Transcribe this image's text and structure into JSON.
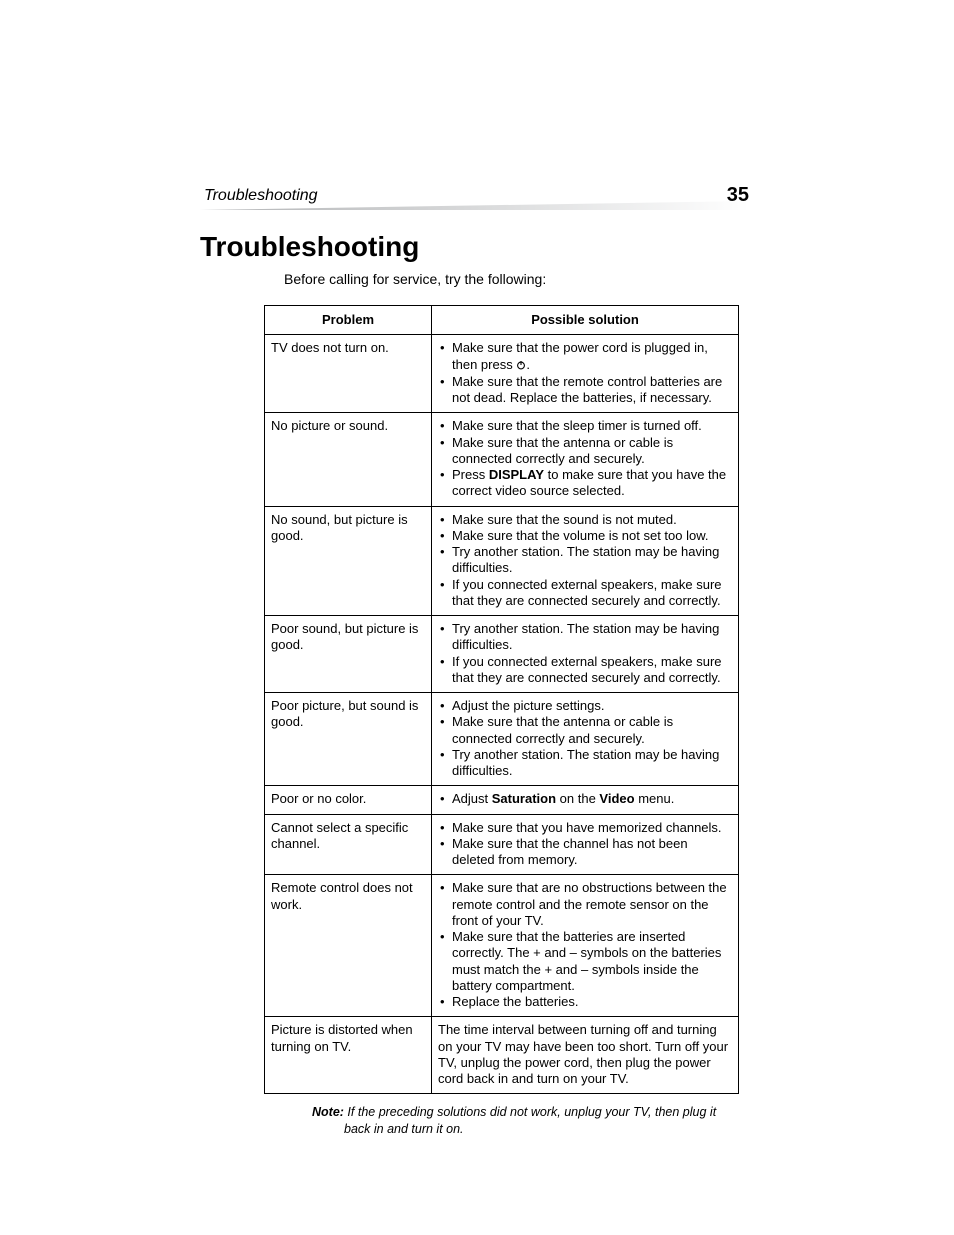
{
  "header": {
    "section_title": "Troubleshooting",
    "page_number": "35",
    "gradient_start": "#b1b3b5",
    "gradient_end": "#ffffff"
  },
  "heading": "Troubleshooting",
  "intro": "Before calling for service, try the following:",
  "table": {
    "col_problem": "Problem",
    "col_solution": "Possible solution",
    "rows": [
      {
        "problem": "TV does not turn on.",
        "solutions": [
          {
            "pre": "Make sure that the power cord is plugged in, then press ",
            "icon": "power",
            "post": "."
          },
          {
            "text": "Make sure that the remote control batteries are not dead. Replace the batteries, if necessary."
          }
        ]
      },
      {
        "problem": "No picture or sound.",
        "solutions": [
          {
            "text": "Make sure that the sleep timer is turned off."
          },
          {
            "text": "Make sure that the antenna or cable is connected correctly and securely."
          },
          {
            "pre": "Press ",
            "bold": "DISPLAY",
            "post": " to make sure that you have the correct video source selected."
          }
        ]
      },
      {
        "problem": "No sound, but picture is good.",
        "solutions": [
          {
            "text": "Make sure that the sound is not muted."
          },
          {
            "text": "Make sure that the volume is not set too low."
          },
          {
            "text": "Try another station. The station may be having difficulties."
          },
          {
            "text": "If you connected external speakers, make sure that they are connected securely and correctly."
          }
        ]
      },
      {
        "problem": "Poor sound, but picture is good.",
        "solutions": [
          {
            "text": "Try another station. The station may be having difficulties."
          },
          {
            "text": "If you connected external speakers, make sure that they are connected securely and correctly."
          }
        ]
      },
      {
        "problem": "Poor picture, but sound is good.",
        "solutions": [
          {
            "text": "Adjust the picture settings."
          },
          {
            "text": "Make sure that the antenna or cable is connected correctly and securely."
          },
          {
            "text": "Try another station. The station may be having difficulties."
          }
        ]
      },
      {
        "problem": "Poor or no color.",
        "solutions": [
          {
            "pre": "Adjust ",
            "bold": "Saturation",
            "mid": " on the ",
            "bold2": "Video",
            "post": " menu."
          }
        ]
      },
      {
        "problem": "Cannot select a specific channel.",
        "solutions": [
          {
            "text": "Make sure that you have memorized channels."
          },
          {
            "text": "Make sure that the channel has not been deleted from memory."
          }
        ]
      },
      {
        "problem": "Remote control does not work.",
        "solutions": [
          {
            "text": "Make sure that are no obstructions between the remote control and the remote sensor on the front of your TV."
          },
          {
            "text": "Make sure that the batteries are inserted correctly. The + and – symbols on the batteries must match the + and – symbols inside the battery compartment."
          },
          {
            "text": "Replace the batteries."
          }
        ]
      },
      {
        "problem": "Picture is distorted when turning on TV.",
        "plain": "The time interval between turning off and turning on your TV may have been too short. Turn off your TV, unplug the power cord, then plug the power cord back in and turn on your TV."
      }
    ]
  },
  "note": {
    "label": "Note:",
    "text": " If the preceding solutions did not work, unplug your TV, then plug it back in and turn it on."
  }
}
